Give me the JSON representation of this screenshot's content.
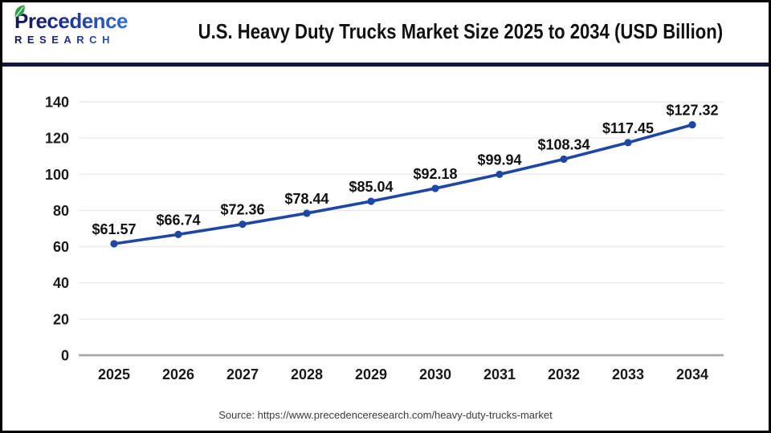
{
  "header": {
    "logo": {
      "brand": "Precedence",
      "sub": "RESEARCH"
    },
    "title": "U.S. Heavy Duty Trucks Market Size 2025 to 2034 (USD Billion)"
  },
  "footer": {
    "source": "Source: https://www.precedenceresearch.com/heavy-duty-trucks-market"
  },
  "colors": {
    "line": "#1e46a5",
    "marker": "#1e46a5",
    "grid": "#e8e8e8",
    "axis": "#a8a8a8",
    "divider": "#15163e",
    "leaf_green": "#2f9e44",
    "logo_dark": "#14134f",
    "logo_blue": "#2f6fe0"
  },
  "chart_data": {
    "type": "line",
    "title": "U.S. Heavy Duty Trucks Market Size 2025 to 2034 (USD Billion)",
    "categories": [
      "2025",
      "2026",
      "2027",
      "2028",
      "2029",
      "2030",
      "2031",
      "2032",
      "2033",
      "2034"
    ],
    "values": [
      61.57,
      66.74,
      72.36,
      78.44,
      85.04,
      92.18,
      99.94,
      108.34,
      117.45,
      127.32
    ],
    "point_labels": [
      "$61.57",
      "$66.74",
      "$72.36",
      "$78.44",
      "$85.04",
      "$92.18",
      "$99.94",
      "$108.34",
      "$117.45",
      "$127.32"
    ],
    "xlabel": "",
    "ylabel": "",
    "ylim": [
      0,
      140
    ],
    "yticks": [
      0,
      20,
      40,
      60,
      80,
      100,
      120,
      140
    ],
    "grid": true,
    "legend": "none"
  }
}
